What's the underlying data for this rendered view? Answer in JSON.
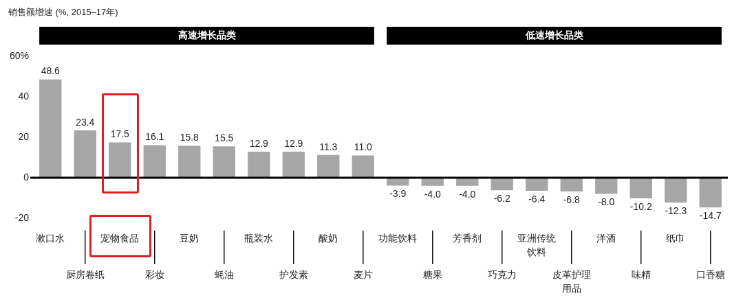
{
  "chart_data": {
    "type": "bar",
    "ylabel": "销售额增速 (%, 2015–17年)",
    "annotations": [
      "高速增长品类",
      "低速增长品类"
    ],
    "categories": [
      "漱口水",
      "厨房卷纸",
      "宠物食品",
      "彩妆",
      "豆奶",
      "蚝油",
      "瓶装水",
      "护发素",
      "酸奶",
      "麦片",
      "功能饮料",
      "糖果",
      "芳香剂",
      "巧克力",
      "亚洲传统饮料",
      "皮革护理用品",
      "洋酒",
      "味精",
      "纸巾",
      "口香糖"
    ],
    "values": [
      48.6,
      23.4,
      17.5,
      16.1,
      15.8,
      15.5,
      12.9,
      12.9,
      11.3,
      11.0,
      -3.9,
      -4.0,
      -4.0,
      -6.2,
      -6.4,
      -6.8,
      -8.0,
      -10.2,
      -12.3,
      -14.7
    ],
    "value_labels": [
      "48.6",
      "23.4",
      "17.5",
      "16.1",
      "15.8",
      "15.5",
      "12.9",
      "12.9",
      "11.3",
      "11.0",
      "-3.9",
      "-4.0",
      "-4.0",
      "-6.2",
      "-6.4",
      "-6.8",
      "-8.0",
      "-10.2",
      "-12.3",
      "-14.7"
    ],
    "color": "#a6a6a6",
    "ylim": [
      -20,
      60
    ],
    "yticks": [
      {
        "value": 60,
        "label": "60%"
      },
      40,
      20,
      0,
      -20
    ],
    "ref_lines": [
      {
        "axis": "y",
        "value": 0,
        "color": "#000000"
      }
    ],
    "legend": false
  }
}
